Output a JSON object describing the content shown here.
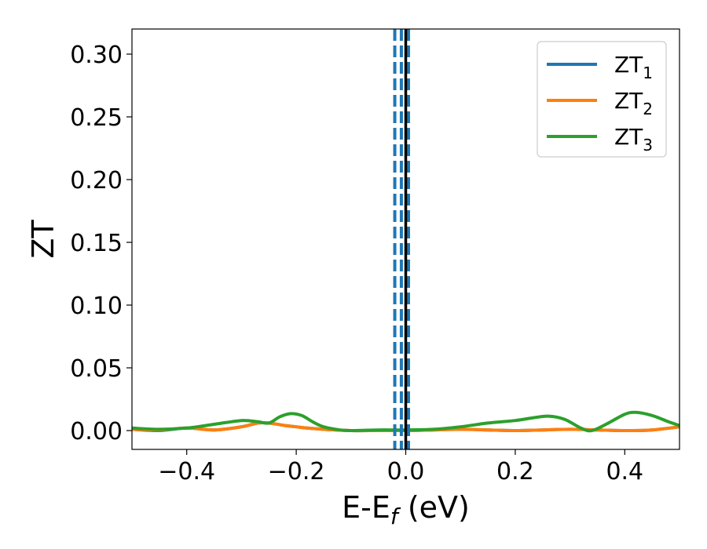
{
  "chart_data": {
    "type": "line",
    "title": "",
    "xlabel": {
      "main": "E-E",
      "subscript": "f",
      "suffix": " (eV)"
    },
    "ylabel": "ZT",
    "xlim": [
      -0.5,
      0.5
    ],
    "ylim": [
      -0.015,
      0.32
    ],
    "xticks": [
      -0.4,
      -0.2,
      0.0,
      0.2,
      0.4
    ],
    "xtick_labels": [
      "−0.4",
      "−0.2",
      "0.0",
      "0.2",
      "0.4"
    ],
    "yticks": [
      0.0,
      0.05,
      0.1,
      0.15,
      0.2,
      0.25,
      0.3
    ],
    "ytick_labels": [
      "0.00",
      "0.05",
      "0.10",
      "0.15",
      "0.20",
      "0.25",
      "0.30"
    ],
    "grid": false,
    "legend_position": "top-right",
    "series": [
      {
        "name": "ZT",
        "name_sub": "1",
        "color": "#1f77b4",
        "x": [
          -0.5,
          -0.45,
          -0.4,
          -0.35,
          -0.3,
          -0.27,
          -0.25,
          -0.22,
          -0.2,
          -0.18,
          -0.15,
          -0.1,
          -0.05,
          0.0,
          0.05,
          0.1,
          0.15,
          0.2,
          0.25,
          0.3,
          0.35,
          0.4,
          0.45,
          0.5
        ],
        "y": [
          0.001,
          0.0,
          0.002,
          0.0005,
          0.003,
          0.006,
          0.006,
          0.004,
          0.003,
          0.002,
          0.001,
          0.0,
          0.0,
          0.0,
          0.0005,
          0.001,
          0.0005,
          0.0,
          0.0005,
          0.001,
          0.0005,
          0.0,
          0.0005,
          0.003
        ]
      },
      {
        "name": "ZT",
        "name_sub": "2",
        "color": "#ff7f0e",
        "x": [
          -0.5,
          -0.45,
          -0.4,
          -0.35,
          -0.3,
          -0.27,
          -0.25,
          -0.22,
          -0.2,
          -0.18,
          -0.15,
          -0.1,
          -0.05,
          0.0,
          0.05,
          0.1,
          0.15,
          0.2,
          0.25,
          0.3,
          0.35,
          0.4,
          0.45,
          0.5
        ],
        "y": [
          0.001,
          0.0005,
          0.002,
          0.0005,
          0.003,
          0.006,
          0.006,
          0.004,
          0.003,
          0.002,
          0.001,
          0.0,
          0.0,
          0.0,
          0.0005,
          0.001,
          0.0005,
          0.0,
          0.0005,
          0.001,
          0.0005,
          0.0,
          0.0005,
          0.003
        ]
      },
      {
        "name": "ZT",
        "name_sub": "3",
        "color": "#2ca02c",
        "x": [
          -0.5,
          -0.45,
          -0.4,
          -0.35,
          -0.3,
          -0.27,
          -0.25,
          -0.23,
          -0.21,
          -0.19,
          -0.17,
          -0.15,
          -0.12,
          -0.1,
          -0.05,
          0.0,
          0.05,
          0.1,
          0.15,
          0.2,
          0.23,
          0.26,
          0.29,
          0.32,
          0.34,
          0.37,
          0.4,
          0.42,
          0.45,
          0.48,
          0.5
        ],
        "y": [
          0.002,
          0.001,
          0.002,
          0.005,
          0.008,
          0.007,
          0.006,
          0.011,
          0.0135,
          0.012,
          0.007,
          0.003,
          0.0005,
          0.0,
          0.0005,
          0.0005,
          0.001,
          0.003,
          0.006,
          0.008,
          0.01,
          0.0115,
          0.009,
          0.002,
          0.0,
          0.006,
          0.013,
          0.0145,
          0.012,
          0.007,
          0.004
        ]
      }
    ],
    "vlines": [
      {
        "x": -0.02,
        "color": "#1f77b4",
        "style": "dashed"
      },
      {
        "x": -0.008,
        "color": "#1f77b4",
        "style": "dashed"
      },
      {
        "x": 0.005,
        "color": "#1f77b4",
        "style": "dashed"
      },
      {
        "x": 0.0,
        "color": "#000000",
        "style": "solid"
      }
    ]
  }
}
